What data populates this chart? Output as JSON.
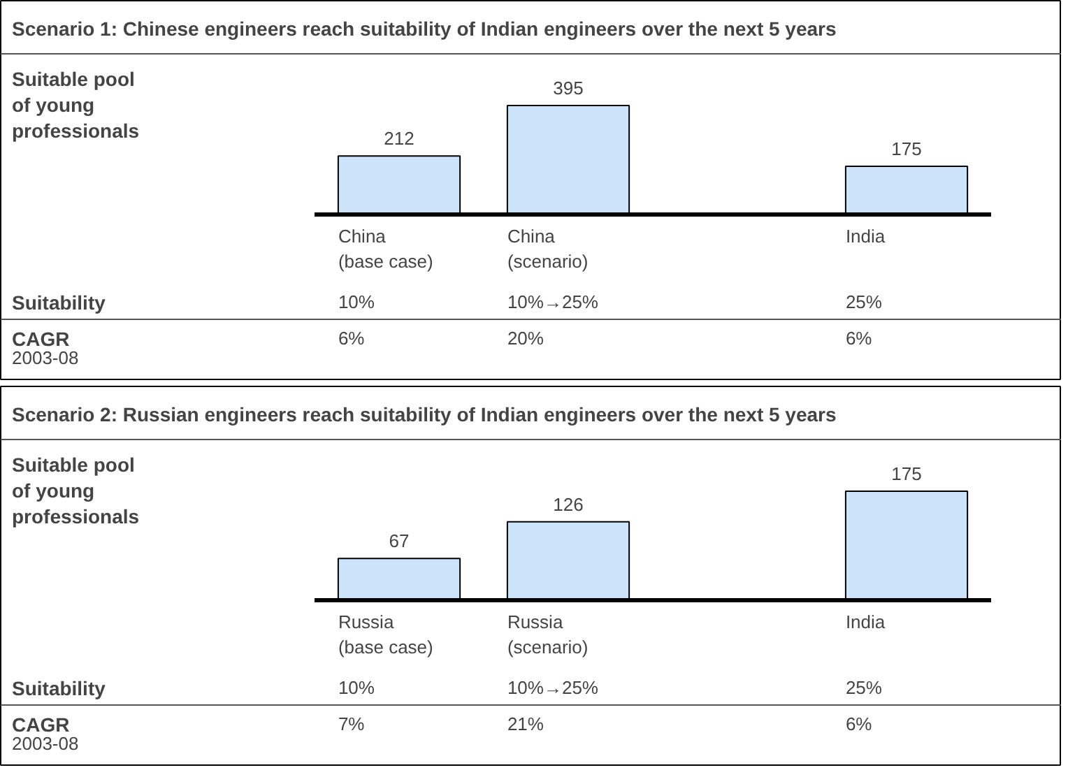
{
  "chart_data": [
    {
      "type": "bar",
      "title": "Scenario 1:  Chinese engineers reach suitability of Indian engineers over the next 5 years",
      "ylabel": "Suitable pool\nof young\nprofessionals",
      "categories": [
        "China\n(base case)",
        "China\n(scenario)",
        null,
        "India"
      ],
      "values": [
        212,
        395,
        null,
        175
      ],
      "color": "#cce3f9",
      "data_labels": true,
      "annotations": [
        "Suitability",
        "10%",
        "10%→25%",
        "25%",
        "CAGR\n2003-08",
        "6%",
        "20%",
        "6%"
      ]
    },
    {
      "type": "bar",
      "title": "Scenario 2:  Russian engineers reach suitability of Indian engineers over the next 5 years",
      "ylabel": "Suitable pool\nof young\nprofessionals",
      "categories": [
        "Russia\n(base case)",
        "Russia\n(scenario)",
        null,
        "India"
      ],
      "values": [
        67,
        126,
        null,
        175
      ],
      "color": "#cce3f9",
      "data_labels": true,
      "annotations": [
        "Suitability",
        "10%",
        "10%→25%",
        "25%",
        "CAGR\n2003-08",
        "7%",
        "21%",
        "6%"
      ]
    }
  ]
}
